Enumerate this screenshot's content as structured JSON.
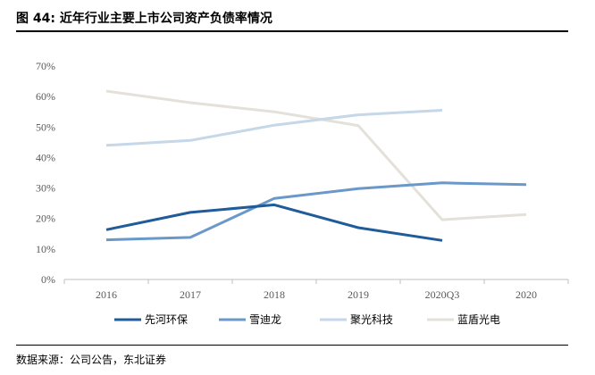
{
  "header": {
    "title": "图  44:  近年行业主要上市公司资产负债率情况"
  },
  "footer": {
    "source": "数据来源：公司公告，东北证券"
  },
  "chart_data": {
    "type": "line",
    "title": "",
    "xlabel": "",
    "ylabel": "",
    "categories": [
      "2016",
      "2017",
      "2018",
      "2019",
      "2020Q3",
      "2020"
    ],
    "y_ticks": [
      "0%",
      "10%",
      "20%",
      "30%",
      "40%",
      "50%",
      "60%",
      "70%"
    ],
    "ylim": [
      0,
      70
    ],
    "grid": false,
    "legend_position": "bottom",
    "series": [
      {
        "name": "先河环保",
        "color": "#1f5c99",
        "values": [
          16.3,
          22.0,
          24.5,
          17.0,
          12.8,
          null
        ]
      },
      {
        "name": "雪迪龙",
        "color": "#6a98c8",
        "values": [
          13.0,
          13.8,
          26.6,
          29.8,
          31.7,
          31.1
        ]
      },
      {
        "name": "聚光科技",
        "color": "#c5d7e8",
        "values": [
          44.0,
          45.6,
          50.6,
          54.0,
          55.5,
          null
        ]
      },
      {
        "name": "蓝盾光电",
        "color": "#e3e1d9",
        "values": [
          61.8,
          58.0,
          55.0,
          50.5,
          19.6,
          21.3
        ]
      }
    ]
  }
}
